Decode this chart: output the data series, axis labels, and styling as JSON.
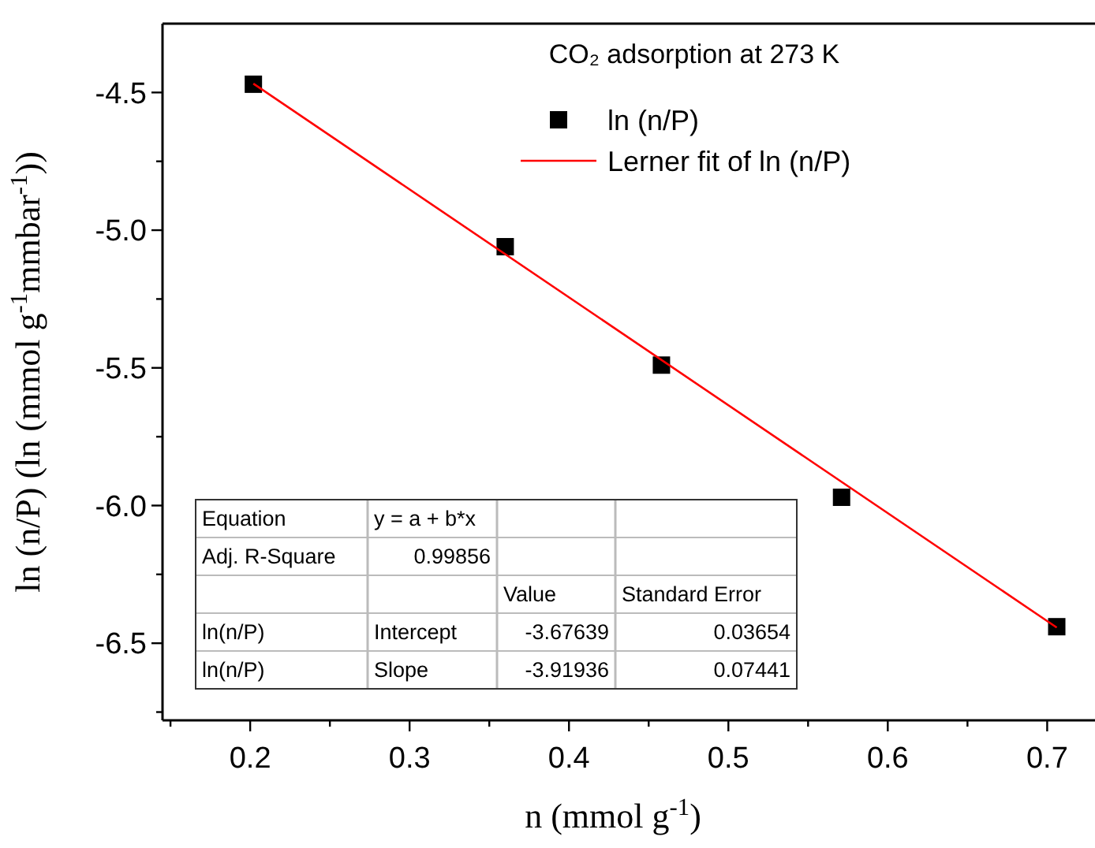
{
  "chart_data": {
    "type": "scatter",
    "title": "CO₂ adsorption at 273 K",
    "xlabel": "n (mmol g$^{-1}$)",
    "ylabel": "ln (n/P) (ln (mmol g$^{-1}$mmbar$^{-1}$))",
    "xlim": [
      0.145,
      0.73
    ],
    "ylim": [
      -6.78,
      -4.25
    ],
    "xticks": [
      {
        "value": 0.15,
        "label": null
      },
      {
        "value": 0.2,
        "label": "0.2"
      },
      {
        "value": 0.25,
        "label": null
      },
      {
        "value": 0.3,
        "label": "0.3"
      },
      {
        "value": 0.35,
        "label": null
      },
      {
        "value": 0.4,
        "label": "0.4"
      },
      {
        "value": 0.45,
        "label": null
      },
      {
        "value": 0.5,
        "label": "0.5"
      },
      {
        "value": 0.55,
        "label": null
      },
      {
        "value": 0.6,
        "label": "0.6"
      },
      {
        "value": 0.65,
        "label": null
      },
      {
        "value": 0.7,
        "label": "0.7"
      }
    ],
    "yticks": [
      {
        "value": -6.75,
        "label": null
      },
      {
        "value": -6.5,
        "label": "-6.5"
      },
      {
        "value": -6.25,
        "label": null
      },
      {
        "value": -6,
        "label": "-6.0"
      },
      {
        "value": -5.75,
        "label": null
      },
      {
        "value": -5.5,
        "label": "-5.5"
      },
      {
        "value": -5.25,
        "label": null
      },
      {
        "value": -5,
        "label": "-5.0"
      },
      {
        "value": -4.75,
        "label": null
      },
      {
        "value": -4.5,
        "label": "-4.5"
      }
    ],
    "grid": false,
    "legend": "top right",
    "series": [
      {
        "name": "ln (n/P)",
        "color": "#000000",
        "marker": "square",
        "x": [
          0.202,
          0.36,
          0.458,
          0.571,
          0.706
        ],
        "values": [
          -4.47,
          -5.06,
          -5.49,
          -5.97,
          -6.44
        ]
      },
      {
        "name": "Lerner fit of ln (n/P)",
        "type": "line",
        "marker": "none",
        "color": "#ff0000",
        "x": [
          0.202,
          0.706
        ],
        "values": [
          -4.468,
          -6.443
        ]
      }
    ],
    "annotations": [
      "Equation",
      "y = a + b*x",
      "Adj. R-Square",
      "0.99856",
      "Value",
      "Standard Error",
      "ln(n/P)",
      "Intercept",
      "-3.67639",
      "0.03654",
      "ln(n/P)",
      "Slope",
      "-3.91936",
      "0.07441"
    ]
  }
}
